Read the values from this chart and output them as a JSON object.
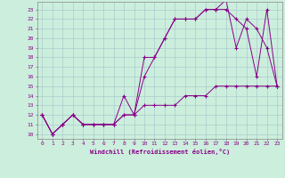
{
  "xlabel": "Windchill (Refroidissement éolien,°C)",
  "bg_color": "#cceedd",
  "line_color": "#880088",
  "grid_color": "#aacccc",
  "xlim": [
    -0.5,
    23.5
  ],
  "ylim": [
    9.5,
    23.8
  ],
  "xticks": [
    0,
    1,
    2,
    3,
    4,
    5,
    6,
    7,
    8,
    9,
    10,
    11,
    12,
    13,
    14,
    15,
    16,
    17,
    18,
    19,
    20,
    21,
    22,
    23
  ],
  "yticks": [
    10,
    11,
    12,
    13,
    14,
    15,
    16,
    17,
    18,
    19,
    20,
    21,
    22,
    23
  ],
  "line1_x": [
    0,
    1,
    2,
    3,
    4,
    5,
    6,
    7,
    8,
    9,
    10,
    11,
    12,
    13,
    14,
    15,
    16,
    17,
    18,
    19,
    20,
    21,
    22,
    23
  ],
  "line1_y": [
    12,
    10,
    11,
    12,
    11,
    11,
    11,
    11,
    14,
    12,
    13,
    13,
    13,
    13,
    14,
    14,
    14,
    15,
    15,
    15,
    15,
    15,
    15,
    15
  ],
  "line2_x": [
    0,
    1,
    2,
    3,
    4,
    5,
    6,
    7,
    8,
    9,
    10,
    11,
    12,
    13,
    14,
    15,
    16,
    17,
    18,
    19,
    20,
    21,
    22,
    23
  ],
  "line2_y": [
    12,
    10,
    11,
    12,
    11,
    11,
    11,
    11,
    12,
    12,
    16,
    18,
    20,
    22,
    22,
    22,
    23,
    23,
    23,
    22,
    21,
    16,
    23,
    15
  ],
  "line3_x": [
    0,
    1,
    2,
    3,
    4,
    5,
    6,
    7,
    8,
    9,
    10,
    11,
    12,
    13,
    14,
    15,
    16,
    17,
    18,
    19,
    20,
    21,
    22,
    23
  ],
  "line3_y": [
    12,
    10,
    11,
    12,
    11,
    11,
    11,
    11,
    12,
    12,
    18,
    18,
    20,
    22,
    22,
    22,
    23,
    23,
    24,
    19,
    22,
    21,
    19,
    15
  ]
}
